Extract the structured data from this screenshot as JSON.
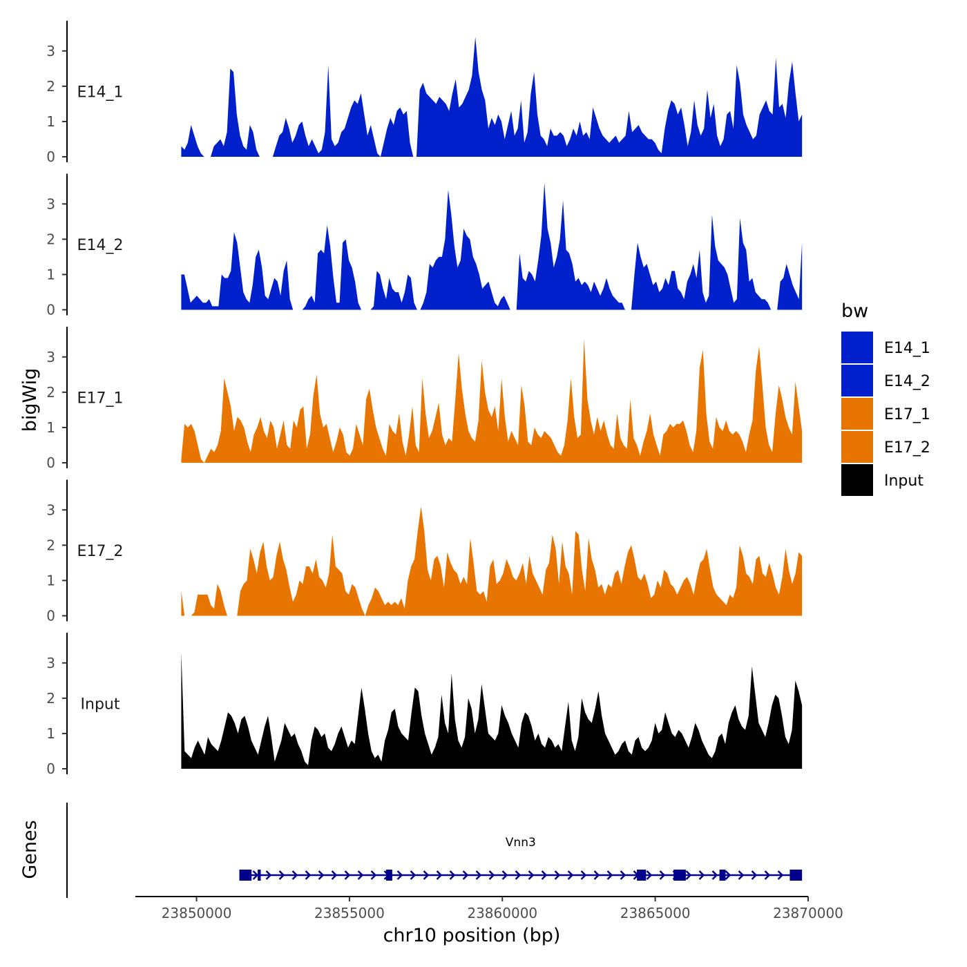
{
  "chart_data": {
    "type": "area",
    "ylabel": "bigWig",
    "xlabel": "chr10 position (bp)",
    "xlim": [
      23848000,
      23870000
    ],
    "xticks": [
      23850000,
      23855000,
      23860000,
      23865000,
      23870000
    ],
    "xtick_labels": [
      "23850000",
      "23855000",
      "23860000",
      "23865000",
      "23870000"
    ],
    "ylim": [
      0,
      3.7
    ],
    "yticks": [
      0,
      1,
      2,
      3
    ],
    "ytick_labels": [
      "0",
      "1",
      "2",
      "3"
    ],
    "legend": {
      "title": "bw",
      "position": "right",
      "entries": [
        {
          "label": "E14_1",
          "color": "#0020CC"
        },
        {
          "label": "E14_2",
          "color": "#0020CC"
        },
        {
          "label": "E17_1",
          "color": "#E87500"
        },
        {
          "label": "E17_2",
          "color": "#E87500"
        },
        {
          "label": "Input",
          "color": "#000000"
        }
      ]
    },
    "series": [
      {
        "name": "E14_1",
        "color": "#0020CC",
        "x_start": 23849500,
        "x_end": 23869800,
        "values": [
          0.3,
          0.2,
          0.4,
          0.9,
          0.6,
          0.3,
          0.1,
          0,
          0,
          0,
          0.3,
          0.4,
          0.5,
          0.3,
          0.7,
          2.5,
          2.4,
          1.2,
          0.6,
          0.3,
          0.2,
          0.9,
          0.7,
          0.2,
          0,
          0,
          0,
          0,
          0,
          0.3,
          0.6,
          0.7,
          1.1,
          0.8,
          0.4,
          0.6,
          0.9,
          1.0,
          0.6,
          0.3,
          0.5,
          0.3,
          0.1,
          0.2,
          0.7,
          2.6,
          0.5,
          0.3,
          0.4,
          0.7,
          0.8,
          1.1,
          1.4,
          1.6,
          1.5,
          1.8,
          1.2,
          0.6,
          0.9,
          0.5,
          0.1,
          0,
          0.4,
          0.8,
          1.1,
          0.9,
          1.3,
          1.4,
          1.2,
          1.3,
          0.4,
          0,
          0,
          1.9,
          2.1,
          1.8,
          1.7,
          1.6,
          1.5,
          1.7,
          1.6,
          1.5,
          1.3,
          1.8,
          2.2,
          1.4,
          1.5,
          1.7,
          1.9,
          2.3,
          3.4,
          2.4,
          1.9,
          1.6,
          0.8,
          1.1,
          0.9,
          1.2,
          1.0,
          0.5,
          0.9,
          1.3,
          0.6,
          0.8,
          1.6,
          0.4,
          0.7,
          1.8,
          2.4,
          1.2,
          0.6,
          0.5,
          0.3,
          0.8,
          0.6,
          0.6,
          0.7,
          0.6,
          0.3,
          0.5,
          0.8,
          0.6,
          1.0,
          0.6,
          0.7,
          0.5,
          1.4,
          1.1,
          0.8,
          0.6,
          0.5,
          0.4,
          0.5,
          0.6,
          0.4,
          0.5,
          0.6,
          1.3,
          0.7,
          0.8,
          0.9,
          0.7,
          0.6,
          0.5,
          0.5,
          0.4,
          0.2,
          0.1,
          0.8,
          1.3,
          1.6,
          1.5,
          1.2,
          1.4,
          0.9,
          0.3,
          0.7,
          1.6,
          0.9,
          0.6,
          0.8,
          1.9,
          1.1,
          1.5,
          0.6,
          0.3,
          0.5,
          1.2,
          1.3,
          0.8,
          2.6,
          2.1,
          1.2,
          0.9,
          0.7,
          0.5,
          0.6,
          1.2,
          1.4,
          1.6,
          1.3,
          1.2,
          2.8,
          1.4,
          1.5,
          1.1,
          2.1,
          2.7,
          1.8,
          1.0,
          1.2
        ]
      },
      {
        "name": "E14_2",
        "color": "#0020CC",
        "x_start": 23849500,
        "x_end": 23869800,
        "values": [
          1.0,
          1.0,
          0.6,
          0.2,
          0.3,
          0.4,
          0.3,
          0.2,
          0.2,
          0.3,
          0.1,
          0.1,
          0.1,
          1.0,
          0.9,
          0.9,
          1.1,
          2.2,
          1.9,
          1.2,
          0.5,
          0.3,
          0.2,
          0.7,
          1.5,
          1.7,
          1.2,
          0.4,
          0.3,
          0.6,
          0.9,
          0.8,
          0.4,
          1.1,
          1.4,
          0.3,
          0,
          0,
          0,
          0,
          0.1,
          0.3,
          0.4,
          0.2,
          1.6,
          1.7,
          1.6,
          2.4,
          1.8,
          0.9,
          0.2,
          0.2,
          1.9,
          2.0,
          1.4,
          1.2,
          0.8,
          0.2,
          0,
          0,
          0,
          0,
          0.1,
          1.1,
          1.0,
          0.6,
          0.3,
          0.9,
          0.6,
          0.5,
          0.5,
          0.2,
          0.5,
          1.0,
          0.9,
          0.2,
          0,
          0,
          0.2,
          0.5,
          1.3,
          1.2,
          1.4,
          1.5,
          1.5,
          2.0,
          3.4,
          2.7,
          1.8,
          1.2,
          1.4,
          2.3,
          2.1,
          2.0,
          1.5,
          1.3,
          1.0,
          0.6,
          0.7,
          0.8,
          0.5,
          0.2,
          0.1,
          0.3,
          0.4,
          0.2,
          0,
          0,
          0,
          1.6,
          0.9,
          0.8,
          1.1,
          1.0,
          0.8,
          1.4,
          2.1,
          3.6,
          2.3,
          1.9,
          1.2,
          1.5,
          2.0,
          3.1,
          1.7,
          1.6,
          1.3,
          0.8,
          0.9,
          0.7,
          0.8,
          0.7,
          0.5,
          0.8,
          0.6,
          0.4,
          0.6,
          0.9,
          0.6,
          0.4,
          0.3,
          0.2,
          0.2,
          0,
          0,
          0,
          1.0,
          1.9,
          1.5,
          1.2,
          1.3,
          1.0,
          0.7,
          0.8,
          0.5,
          0.6,
          0.9,
          0.7,
          1.1,
          1.1,
          0.6,
          0.5,
          0.3,
          0.8,
          1.0,
          1.3,
          0.9,
          1.7,
          0.5,
          0.2,
          0.4,
          2.7,
          1.8,
          1.4,
          1.3,
          1.2,
          1.0,
          0.6,
          0.2,
          0.3,
          2.6,
          1.9,
          1.7,
          0.8,
          0.9,
          0.5,
          0.4,
          0.3,
          0.3,
          0.2,
          0,
          0,
          0,
          0.8,
          0.9,
          1.3,
          1.0,
          0.7,
          0.5,
          0.3,
          1.9
        ]
      },
      {
        "name": "E17_1",
        "color": "#E87500",
        "x_start": 23849500,
        "x_end": 23869800,
        "values": [
          0.1,
          1.1,
          1.0,
          1.1,
          0.9,
          0.5,
          0.1,
          0,
          0.2,
          0.4,
          0.3,
          0.5,
          0.9,
          2.4,
          2.0,
          1.6,
          0.9,
          1.3,
          1.2,
          1.0,
          0.6,
          0.3,
          0.8,
          1.0,
          1.3,
          0.9,
          0.7,
          1.2,
          1.0,
          0.4,
          0.8,
          1.2,
          0.5,
          0.4,
          1.2,
          1.0,
          1.5,
          1.6,
          0.4,
          0.8,
          1.9,
          2.5,
          1.4,
          1.0,
          1.1,
          0.7,
          0.3,
          0.6,
          1.0,
          0.8,
          0.3,
          0.2,
          0.4,
          1.1,
          0.8,
          0.5,
          1.8,
          2.1,
          1.5,
          1.0,
          0.7,
          0.4,
          0.2,
          1.1,
          0.9,
          0.8,
          1.4,
          0.6,
          0.2,
          0.8,
          1.6,
          0.5,
          0.3,
          2.4,
          1.4,
          0.7,
          0.9,
          1.3,
          1.7,
          0.8,
          0.5,
          0.7,
          0.6,
          1.8,
          3.1,
          2.1,
          1.4,
          0.9,
          0.7,
          0.6,
          1.2,
          2.9,
          2.0,
          1.5,
          1.3,
          1.6,
          0.9,
          2.4,
          1.3,
          0.6,
          0.9,
          0.7,
          0.5,
          2.2,
          1.6,
          0.6,
          0.5,
          1.0,
          0.8,
          0.7,
          0.9,
          0.8,
          0.7,
          0.5,
          0.3,
          0.2,
          0.5,
          1.2,
          2.4,
          1.3,
          0.7,
          0.8,
          3.5,
          1.8,
          1.2,
          0.8,
          1.3,
          0.9,
          1.2,
          0.8,
          0.5,
          0.4,
          1.4,
          0.7,
          0.5,
          0.4,
          1.8,
          0.7,
          0.5,
          0.2,
          0.6,
          0.9,
          1.4,
          0.8,
          0.5,
          0.2,
          0.8,
          0.9,
          1.1,
          1.0,
          1.1,
          1.1,
          1.2,
          0.9,
          0.5,
          0.3,
          0.9,
          2.7,
          3.2,
          1.4,
          0.6,
          0.4,
          1.3,
          1.0,
          0.9,
          1.2,
          0.9,
          0.8,
          0.9,
          0.8,
          0.6,
          0.3,
          0.8,
          1.2,
          2.6,
          3.3,
          2.2,
          1.0,
          0.5,
          0.3,
          1.4,
          2.2,
          1.8,
          1.3,
          1.0,
          0.8,
          2.3,
          1.6,
          0.9
        ]
      },
      {
        "name": "E17_2",
        "color": "#E87500",
        "x_start": 23849500,
        "x_end": 23869800,
        "values": [
          0.7,
          0,
          0,
          0,
          0.1,
          0.6,
          0.6,
          0.6,
          0.6,
          0.3,
          0.2,
          0.9,
          0.7,
          0.3,
          0,
          0,
          0,
          0,
          0.7,
          0.9,
          1.0,
          1.9,
          1.6,
          1.2,
          1.8,
          2.1,
          1.4,
          1.0,
          1.1,
          1.7,
          2.1,
          1.6,
          1.3,
          0.8,
          0.4,
          0.6,
          1.0,
          0.9,
          1.4,
          1.4,
          1.2,
          1.6,
          1.1,
          1.0,
          0.8,
          1.2,
          2.3,
          1.4,
          1.3,
          1.2,
          0.7,
          0.6,
          0.9,
          0.8,
          0.5,
          0.2,
          0,
          0.3,
          0.5,
          0.8,
          0.7,
          0.5,
          0.3,
          0.4,
          0.3,
          0.4,
          0.3,
          0.5,
          0.2,
          1.0,
          1.4,
          1.6,
          2.4,
          3.1,
          2.4,
          1.3,
          1.0,
          1.6,
          1.7,
          1.4,
          0.8,
          1.8,
          1.5,
          1.3,
          1.2,
          0.9,
          1.1,
          0.9,
          2.2,
          1.5,
          0.7,
          0.6,
          0.7,
          0.4,
          1.4,
          1.6,
          0.9,
          1.0,
          1.2,
          1.6,
          1.4,
          1.1,
          1.0,
          1.2,
          1.5,
          0.9,
          1.7,
          1.2,
          1.0,
          0.8,
          0.6,
          1.3,
          1.5,
          2.3,
          1.9,
          0.9,
          2.1,
          1.4,
          1.2,
          0.6,
          2.4,
          2.3,
          1.3,
          0.7,
          2.2,
          1.6,
          1.3,
          0.8,
          0.9,
          0.6,
          0.9,
          0.8,
          1.2,
          1.3,
          0.9,
          1.4,
          1.8,
          2.0,
          1.6,
          1.1,
          1.0,
          1.2,
          0.9,
          0.5,
          0.6,
          1.0,
          0.8,
          1.3,
          1.2,
          0.9,
          0.8,
          0.6,
          0.8,
          1.0,
          1.1,
          0.9,
          0.6,
          1.1,
          1.5,
          1.6,
          1.9,
          1.3,
          0.8,
          0.6,
          0.5,
          0.4,
          0.3,
          0.6,
          0.5,
          0.8,
          2.0,
          1.7,
          1.2,
          1.1,
          0.9,
          1.6,
          1.7,
          1.2,
          1.1,
          1.5,
          1.2,
          0.8,
          0.6,
          1.1,
          1.9,
          1.3,
          0.9,
          1.2,
          1.8,
          1.7
        ]
      },
      {
        "name": "Input",
        "color": "#000000",
        "x_start": 23849500,
        "x_end": 23869800,
        "values": [
          3.3,
          0.5,
          0.4,
          0.3,
          0.6,
          0.8,
          0.6,
          0.4,
          0.9,
          0.7,
          0.6,
          0.5,
          0.8,
          1.2,
          1.6,
          1.5,
          1.3,
          1.0,
          1.4,
          1.5,
          1.2,
          0.8,
          0.6,
          0.4,
          0.8,
          1.2,
          1.5,
          0.9,
          0.2,
          0.5,
          0.8,
          1.3,
          1.1,
          0.9,
          1.0,
          0.7,
          0.5,
          0.2,
          0.1,
          0.8,
          1.2,
          1.1,
          0.9,
          1.0,
          0.6,
          0.5,
          0.7,
          1.0,
          1.2,
          0.9,
          0.6,
          0.8,
          0.7,
          1.5,
          2.3,
          1.7,
          1.0,
          0.5,
          0.3,
          0.4,
          0.2,
          0.8,
          1.1,
          1.6,
          1.7,
          1.2,
          1.0,
          0.9,
          0.8,
          1.6,
          2.3,
          2.2,
          1.5,
          1.0,
          0.7,
          0.4,
          0.6,
          0.9,
          2.1,
          1.3,
          1.0,
          2.7,
          1.4,
          0.8,
          0.6,
          0.9,
          2.0,
          1.7,
          1.0,
          1.4,
          2.4,
          1.7,
          1.0,
          0.9,
          0.8,
          1.0,
          1.8,
          1.5,
          1.3,
          1.0,
          0.8,
          0.6,
          1.3,
          1.6,
          1.5,
          1.2,
          0.8,
          1.0,
          0.7,
          0.6,
          0.9,
          0.8,
          0.6,
          0.7,
          0.5,
          1.2,
          1.9,
          0.8,
          0.5,
          0.9,
          2.0,
          1.6,
          1.4,
          1.3,
          1.7,
          2.2,
          1.5,
          1.0,
          0.8,
          0.6,
          0.4,
          0.5,
          0.7,
          0.8,
          0.5,
          0.4,
          0.8,
          0.9,
          0.6,
          0.5,
          0.6,
          0.8,
          1.3,
          1.0,
          1.1,
          1.6,
          1.3,
          1.0,
          0.9,
          1.1,
          1.0,
          0.8,
          0.6,
          0.9,
          1.3,
          1.1,
          0.8,
          0.6,
          0.4,
          0.3,
          0.5,
          0.9,
          1.0,
          0.7,
          1.3,
          1.6,
          1.8,
          1.4,
          1.2,
          1.1,
          1.5,
          2.9,
          2.1,
          1.3,
          1.1,
          0.9,
          1.3,
          1.8,
          2.1,
          2.0,
          1.5,
          0.9,
          0.7,
          1.1,
          2.5,
          2.2,
          1.8
        ]
      }
    ],
    "gene_track": {
      "label": "Genes",
      "gene_name": "Vnn3",
      "color": "#00008B",
      "strand": "+",
      "start": 23851400,
      "end": 23869800,
      "exons": [
        [
          23851400,
          23851800
        ],
        [
          23852000,
          23852100
        ],
        [
          23856200,
          23856400
        ],
        [
          23864400,
          23864700
        ],
        [
          23865600,
          23866000
        ],
        [
          23867100,
          23867300
        ],
        [
          23869400,
          23869800
        ]
      ]
    }
  }
}
